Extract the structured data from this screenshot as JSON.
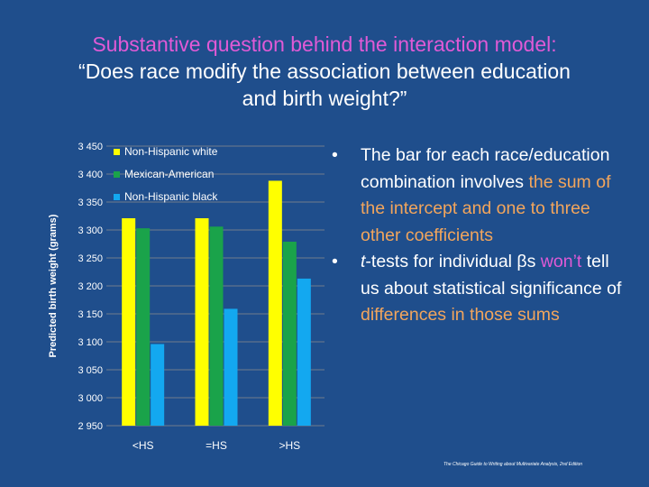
{
  "slide": {
    "title_line1": "Substantive question behind the interaction model:",
    "title_line2": "“Does race modify the association between education",
    "title_line3": "and birth weight?”",
    "bullet1": {
      "text": "The bar for each race/education combination involves ",
      "highlight": "the sum of the intercept and one to three other coefficients",
      "tail": ""
    },
    "bullet2": {
      "pre": "-tests for individual βs ",
      "t": "t",
      "highlight1": "won’t",
      "mid": " tell us about statistical significance of ",
      "highlight2": "differences in those sums"
    },
    "footer": "The Chicago Guide to Writing about Multivariate Analysis, 2nd Edition"
  },
  "chart_data": {
    "type": "bar",
    "categories": [
      "<HS",
      "=HS",
      ">HS"
    ],
    "series": [
      {
        "name": "Non-Hispanic white",
        "color": "#ffff00",
        "values": [
          3321,
          3321,
          3388
        ]
      },
      {
        "name": "Mexican-American",
        "color": "#1aa34a",
        "values": [
          3303,
          3306,
          3279
        ]
      },
      {
        "name": "Non-Hispanic black",
        "color": "#13a8f0",
        "values": [
          3096,
          3159,
          3213
        ]
      }
    ],
    "ylabel": "Predicted birth weight (grams)",
    "ylim": [
      2950,
      3450
    ],
    "yticks": [
      2950,
      3000,
      3050,
      3100,
      3150,
      3200,
      3250,
      3300,
      3350,
      3400,
      3450
    ],
    "ytick_labels": [
      "2 950",
      "3 000",
      "3 050",
      "3 100",
      "3 150",
      "3 200",
      "3 250",
      "3 300",
      "3 350",
      "3 400",
      "3 450"
    ],
    "grid": true,
    "legend_position": "top-left"
  }
}
